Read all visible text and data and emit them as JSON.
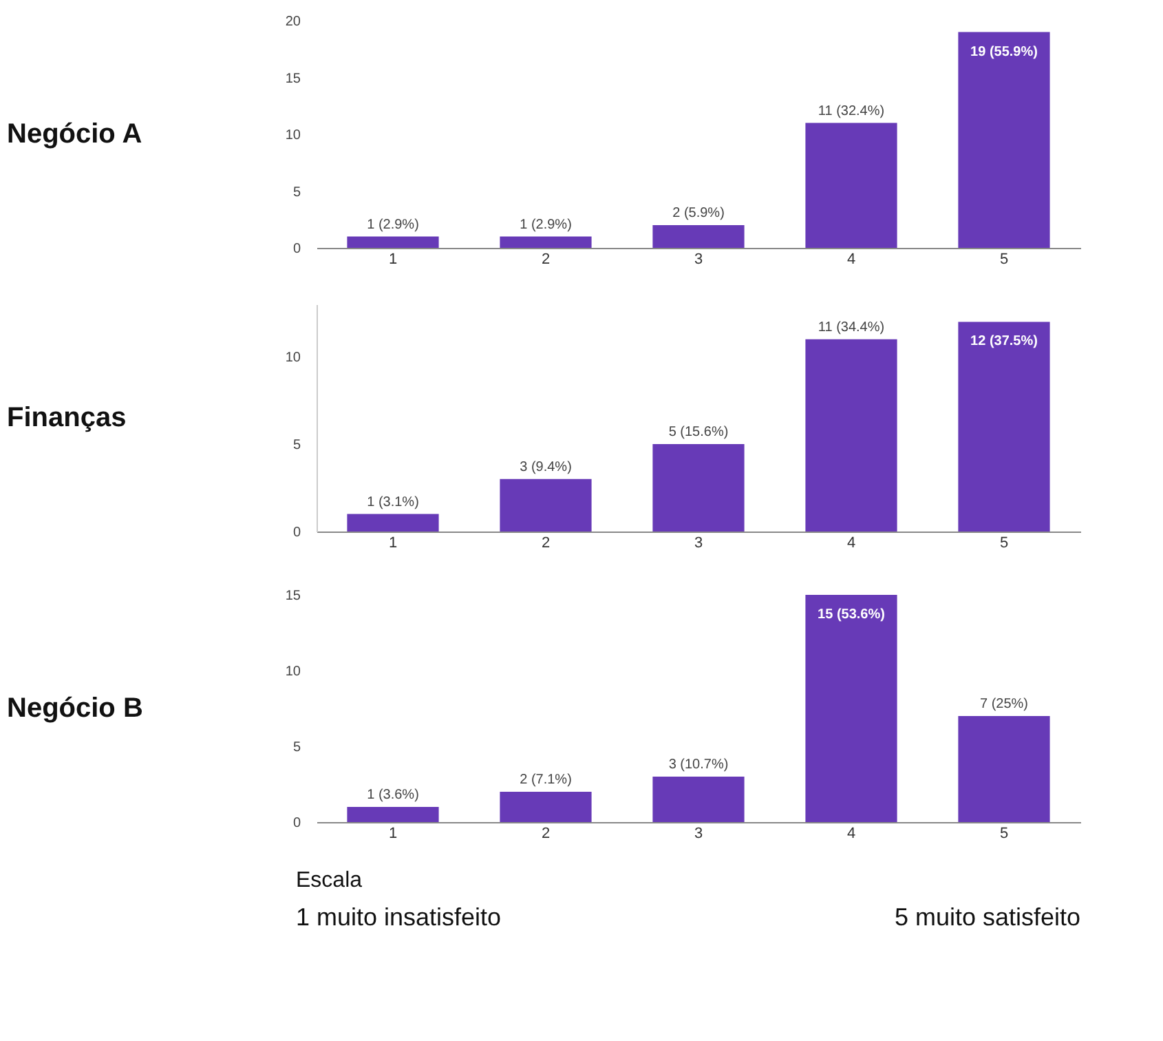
{
  "chart_data": [
    {
      "type": "bar",
      "title": "Negócio A",
      "categories": [
        "1",
        "2",
        "3",
        "4",
        "5"
      ],
      "values": [
        1,
        1,
        2,
        11,
        19
      ],
      "color": "#673ab7",
      "value_labels": [
        "1 (2.9%)",
        "1 (2.9%)",
        "2 (5.9%)",
        "11 (32.4%)",
        "19 (55.9%)"
      ],
      "ylim": [
        0,
        20
      ],
      "yticks": [
        0,
        5,
        10,
        15,
        20
      ],
      "grid": false
    },
    {
      "type": "bar",
      "title": "Finanças",
      "categories": [
        "1",
        "2",
        "3",
        "4",
        "5"
      ],
      "values": [
        1,
        3,
        5,
        11,
        12
      ],
      "color": "#673ab7",
      "value_labels": [
        "1 (3.1%)",
        "3 (9.4%)",
        "5 (15.6%)",
        "11 (34.4%)",
        "12 (37.5%)"
      ],
      "ylim": [
        0,
        13
      ],
      "yticks": [
        0,
        5,
        10
      ],
      "grid": false
    },
    {
      "type": "bar",
      "title": "Negócio B",
      "categories": [
        "1",
        "2",
        "3",
        "4",
        "5"
      ],
      "values": [
        1,
        2,
        3,
        15,
        7
      ],
      "color": "#673ab7",
      "value_labels": [
        "1 (3.6%)",
        "2 (7.1%)",
        "3 (10.7%)",
        "15 (53.6%)",
        "7 (25%)"
      ],
      "ylim": [
        0,
        15
      ],
      "yticks": [
        0,
        5,
        10,
        15
      ],
      "grid": false,
      "annotations": [
        "Escala",
        "1 muito insatisfeito",
        "5 muito satisfeito"
      ]
    }
  ]
}
